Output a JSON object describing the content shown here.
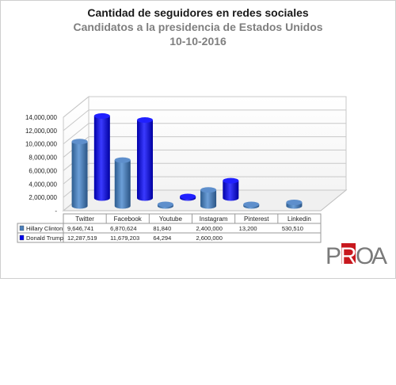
{
  "titles": {
    "title": "Cantidad de seguidores en redes sociales",
    "subtitle": "Candidatos a la presidencia de Estados Unidos",
    "date": "10-10-2016"
  },
  "chart_data": {
    "type": "bar",
    "style": "3d-cylinder",
    "categories": [
      "Twitter",
      "Facebook",
      "Youtube",
      "Instagram",
      "Pinterest",
      "Linkedin"
    ],
    "series": [
      {
        "name": "Hillary Clinton",
        "color": "#4a7ebb",
        "values": [
          9646741,
          6870624,
          81840,
          2400000,
          13200,
          530510
        ],
        "labels": [
          "9,646,741",
          "6,870,624",
          "81,840",
          "2,400,000",
          "13,200",
          "530,510"
        ]
      },
      {
        "name": "Donald Trump",
        "color": "#0000ee",
        "values": [
          12287519,
          11679203,
          64294,
          2600000,
          null,
          null
        ],
        "labels": [
          "12,287,519",
          "11,679,203",
          "64,294",
          "2,600,000",
          "",
          ""
        ]
      }
    ],
    "yticks": [
      "-",
      "2,000,000",
      "4,000,000",
      "6,000,000",
      "8,000,000",
      "10,000,000",
      "12,000,000",
      "14,000,000"
    ],
    "ylim": [
      0,
      14000000
    ],
    "grid": true,
    "legend": "data-table-below"
  },
  "logo": {
    "text": "PROA",
    "name": "proa-logo"
  }
}
